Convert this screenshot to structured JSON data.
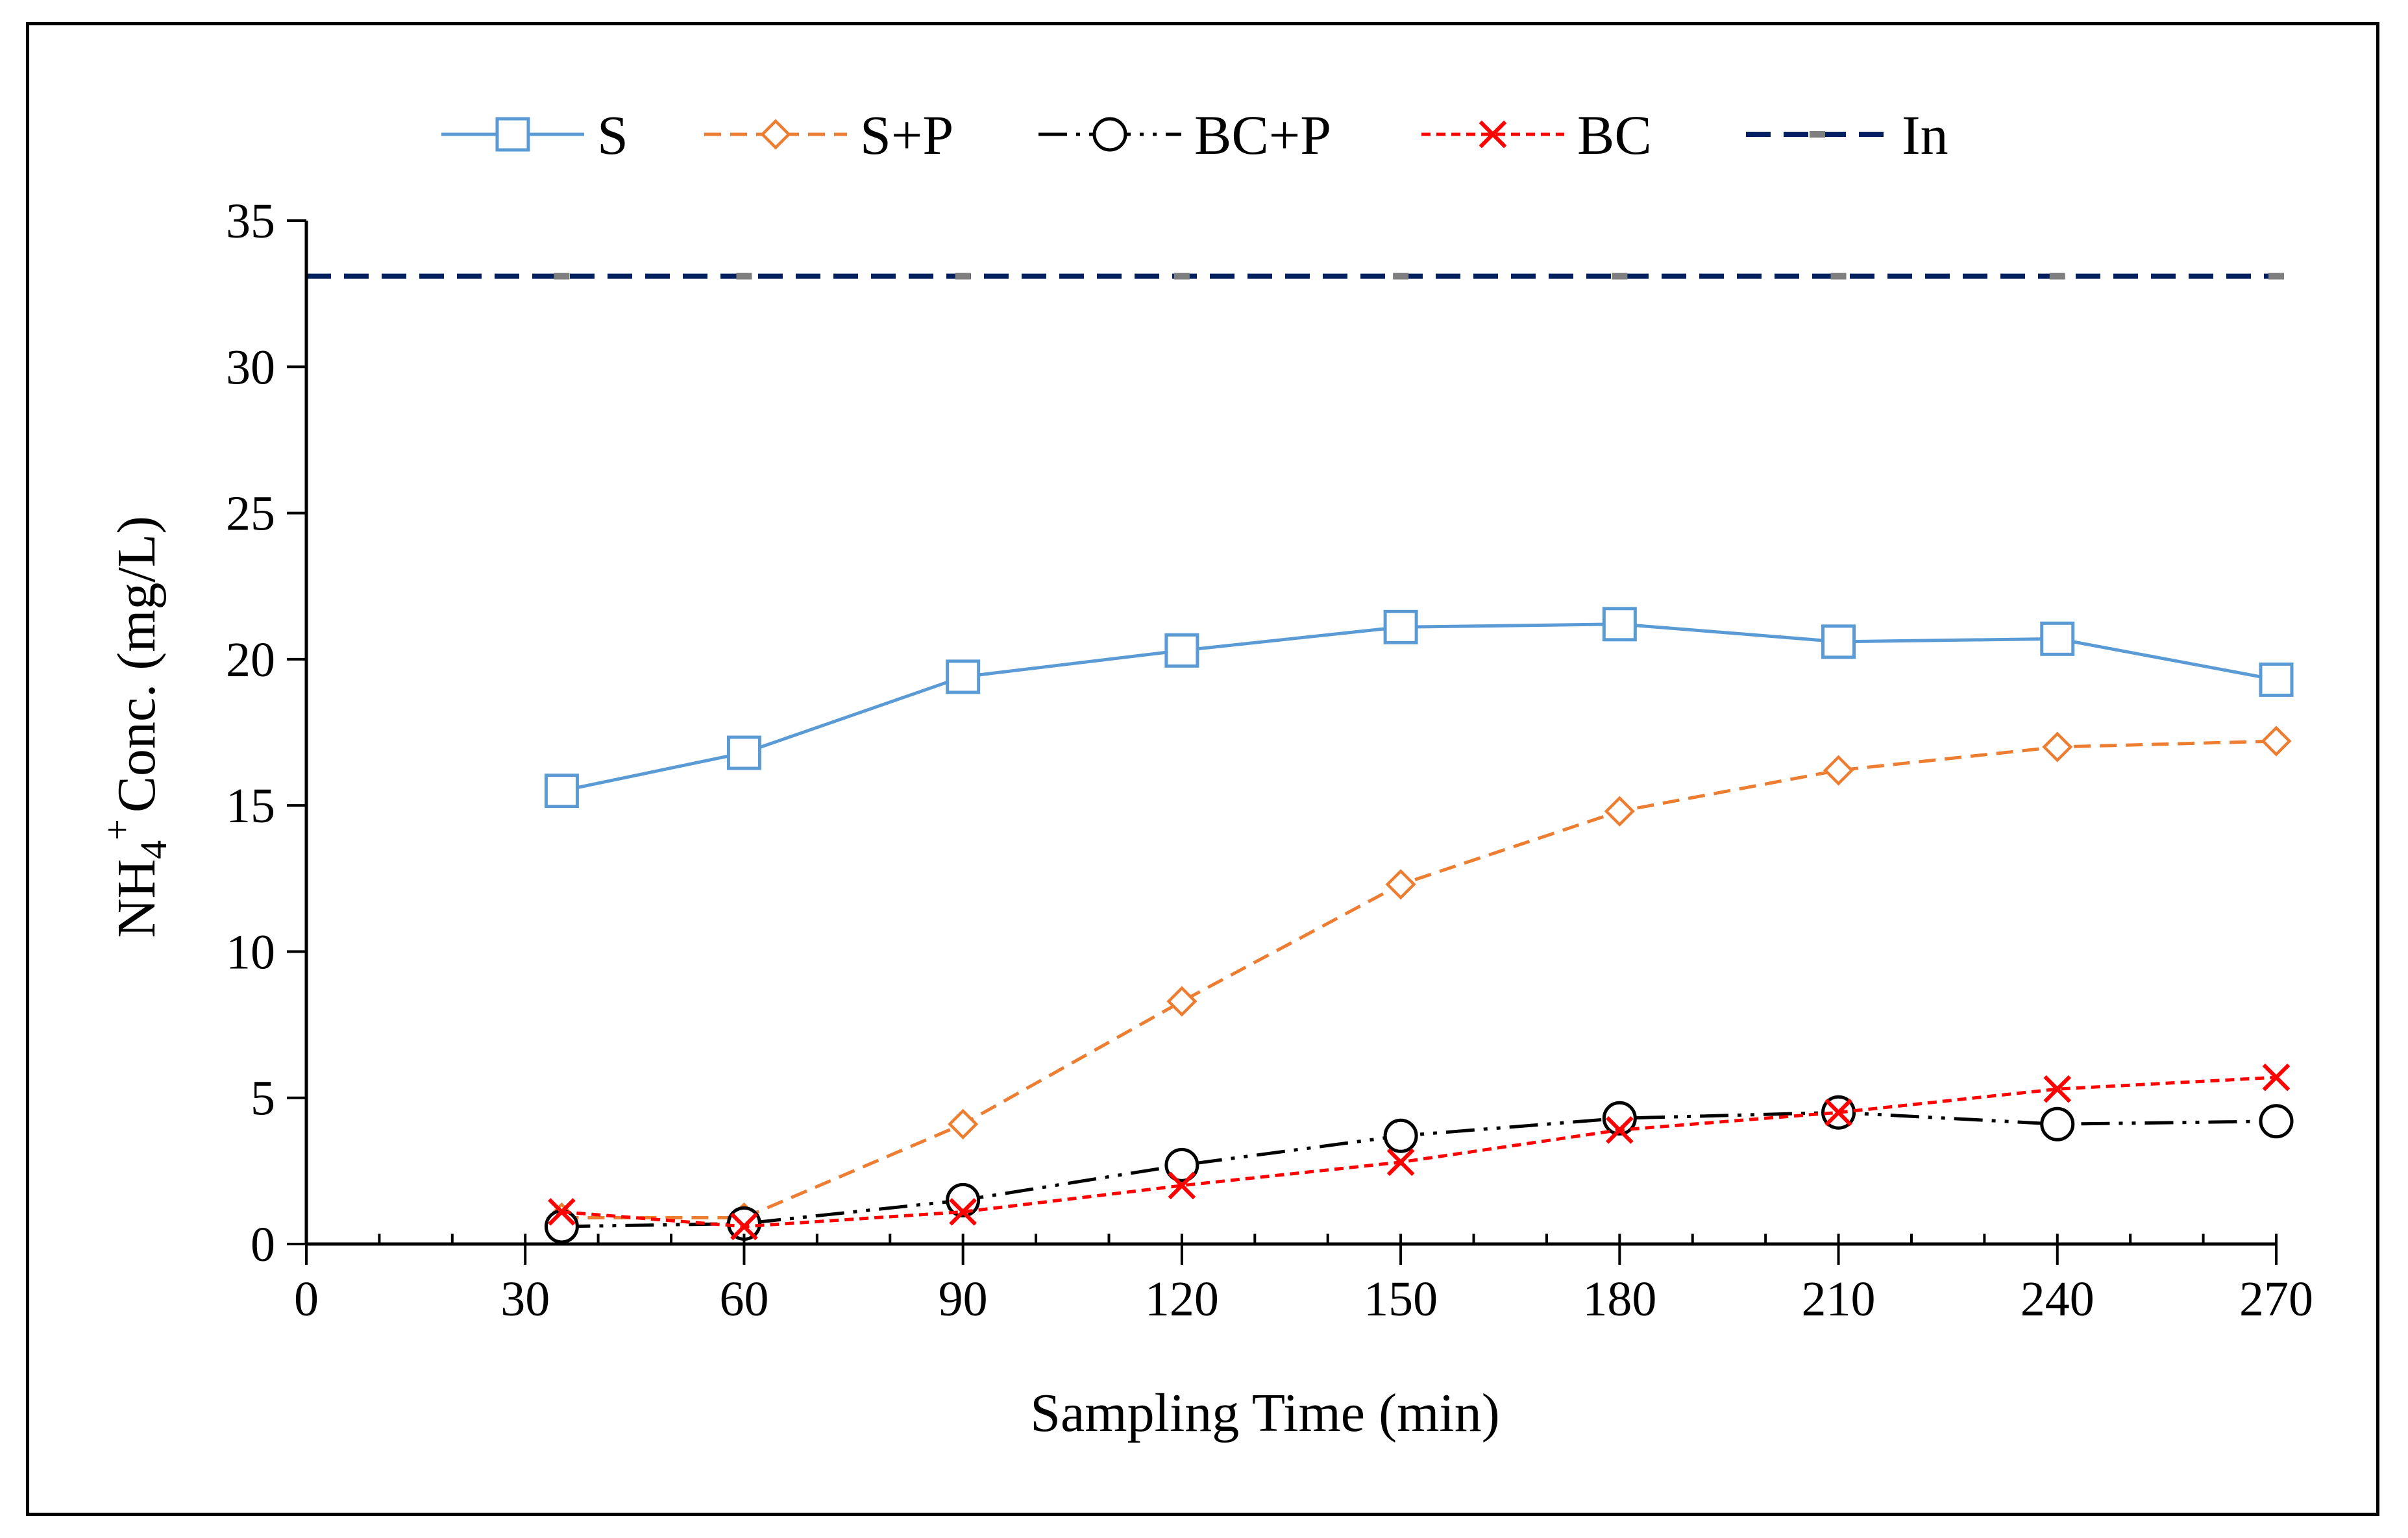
{
  "chart_data": {
    "type": "line",
    "title": "",
    "xlabel": "Sampling Time (min)",
    "ylabel_parts": [
      "NH",
      "4",
      "+",
      "Conc. (mg/L)"
    ],
    "xlim": [
      0,
      270
    ],
    "ylim": [
      0,
      35
    ],
    "x_ticks": [
      0,
      30,
      60,
      90,
      120,
      150,
      180,
      210,
      240,
      270
    ],
    "x_minor_step": 10,
    "y_ticks": [
      0,
      5,
      10,
      15,
      20,
      25,
      30,
      35
    ],
    "grid": false,
    "legend_position": "top",
    "series": [
      {
        "name": "S",
        "color": "#5B9BD5",
        "dash": "solid",
        "marker": "square",
        "x": [
          35,
          60,
          90,
          120,
          150,
          180,
          210,
          240,
          270
        ],
        "y": [
          15.5,
          16.8,
          19.4,
          20.3,
          21.1,
          21.2,
          20.6,
          20.7,
          19.3
        ]
      },
      {
        "name": "S+P",
        "color": "#ED7D31",
        "dash": "dashed",
        "marker": "diamond",
        "x": [
          35,
          60,
          90,
          120,
          150,
          180,
          210,
          240,
          270
        ],
        "y": [
          0.9,
          0.9,
          4.1,
          8.3,
          12.3,
          14.8,
          16.2,
          17.0,
          17.2
        ]
      },
      {
        "name": "BC+P",
        "color": "#000000",
        "dash": "dashdotdot",
        "marker": "circle",
        "x": [
          35,
          60,
          90,
          120,
          150,
          180,
          210,
          240,
          270
        ],
        "y": [
          0.6,
          0.7,
          1.5,
          2.7,
          3.7,
          4.3,
          4.5,
          4.1,
          4.2
        ]
      },
      {
        "name": "BC",
        "color": "#FF0000",
        "dash": "dotted",
        "marker": "x",
        "x": [
          35,
          60,
          90,
          120,
          150,
          180,
          210,
          240,
          270
        ],
        "y": [
          1.1,
          0.6,
          1.1,
          2.0,
          2.8,
          3.9,
          4.5,
          5.3,
          5.7
        ]
      },
      {
        "name": "In",
        "color": "#002060",
        "dash": "longdash",
        "marker": "dash",
        "x": [
          0,
          35,
          60,
          90,
          120,
          150,
          180,
          210,
          240,
          270
        ],
        "y": [
          33.1,
          33.1,
          33.1,
          33.1,
          33.1,
          33.1,
          33.1,
          33.1,
          33.1,
          33.1
        ]
      }
    ]
  }
}
